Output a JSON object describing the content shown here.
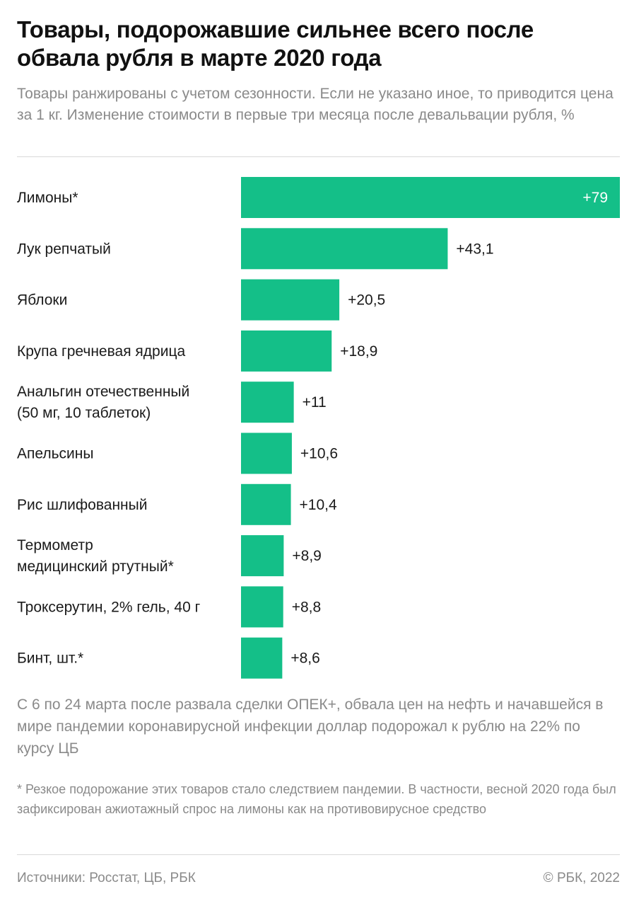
{
  "header": {
    "title": "Товары, подорожавшие сильнее всего после обвала рубля в марте 2020 года",
    "subtitle": "Товары ранжированы с учетом сезонности. Если не указано иное, то приводится цена за 1 кг. Изменение стоимости в первые три месяца после девальвации рубля, %"
  },
  "note": "С 6 по 24 марта после развала сделки ОПЕК+, обвала цен на нефть и начавшейся в мире пандемии коронавирусной инфекции доллар подорожал к рублю на 22% по курсу ЦБ",
  "footnote": "* Резкое подорожание этих товаров стало следствием пандемии. В частности, весной 2020 года был зафиксирован ажиотажный спрос на лимоны как на противовирусное средство",
  "footer": {
    "sources": "Источники: Росстат, ЦБ, РБК",
    "copyright": "© РБК, 2022"
  },
  "colors": {
    "bar": "#14bf88",
    "label_inside": "#ffffff",
    "label_outside": "#1a1a1a"
  },
  "chart_data": {
    "type": "bar",
    "orientation": "horizontal",
    "categories": [
      [
        "Лимоны*"
      ],
      [
        "Лук репчатый"
      ],
      [
        "Яблоки"
      ],
      [
        "Крупа гречневая ядрица"
      ],
      [
        "Анальгин отечественный",
        "(50 мг, 10 таблеток)"
      ],
      [
        "Апельсины"
      ],
      [
        "Рис шлифованный"
      ],
      [
        "Термометр",
        "медицинский ртутный*"
      ],
      [
        "Троксерутин, 2% гель, 40 г"
      ],
      [
        "Бинт, шт.*"
      ]
    ],
    "values": [
      79,
      43.1,
      20.5,
      18.9,
      11,
      10.6,
      10.4,
      8.9,
      8.8,
      8.6
    ],
    "value_labels": [
      "+79",
      "+43,1",
      "+20,5",
      "+18,9",
      "+11",
      "+10,6",
      "+10,4",
      "+8,9",
      "+8,8",
      "+8,6"
    ],
    "xlim": [
      0,
      79
    ],
    "grid": false
  }
}
